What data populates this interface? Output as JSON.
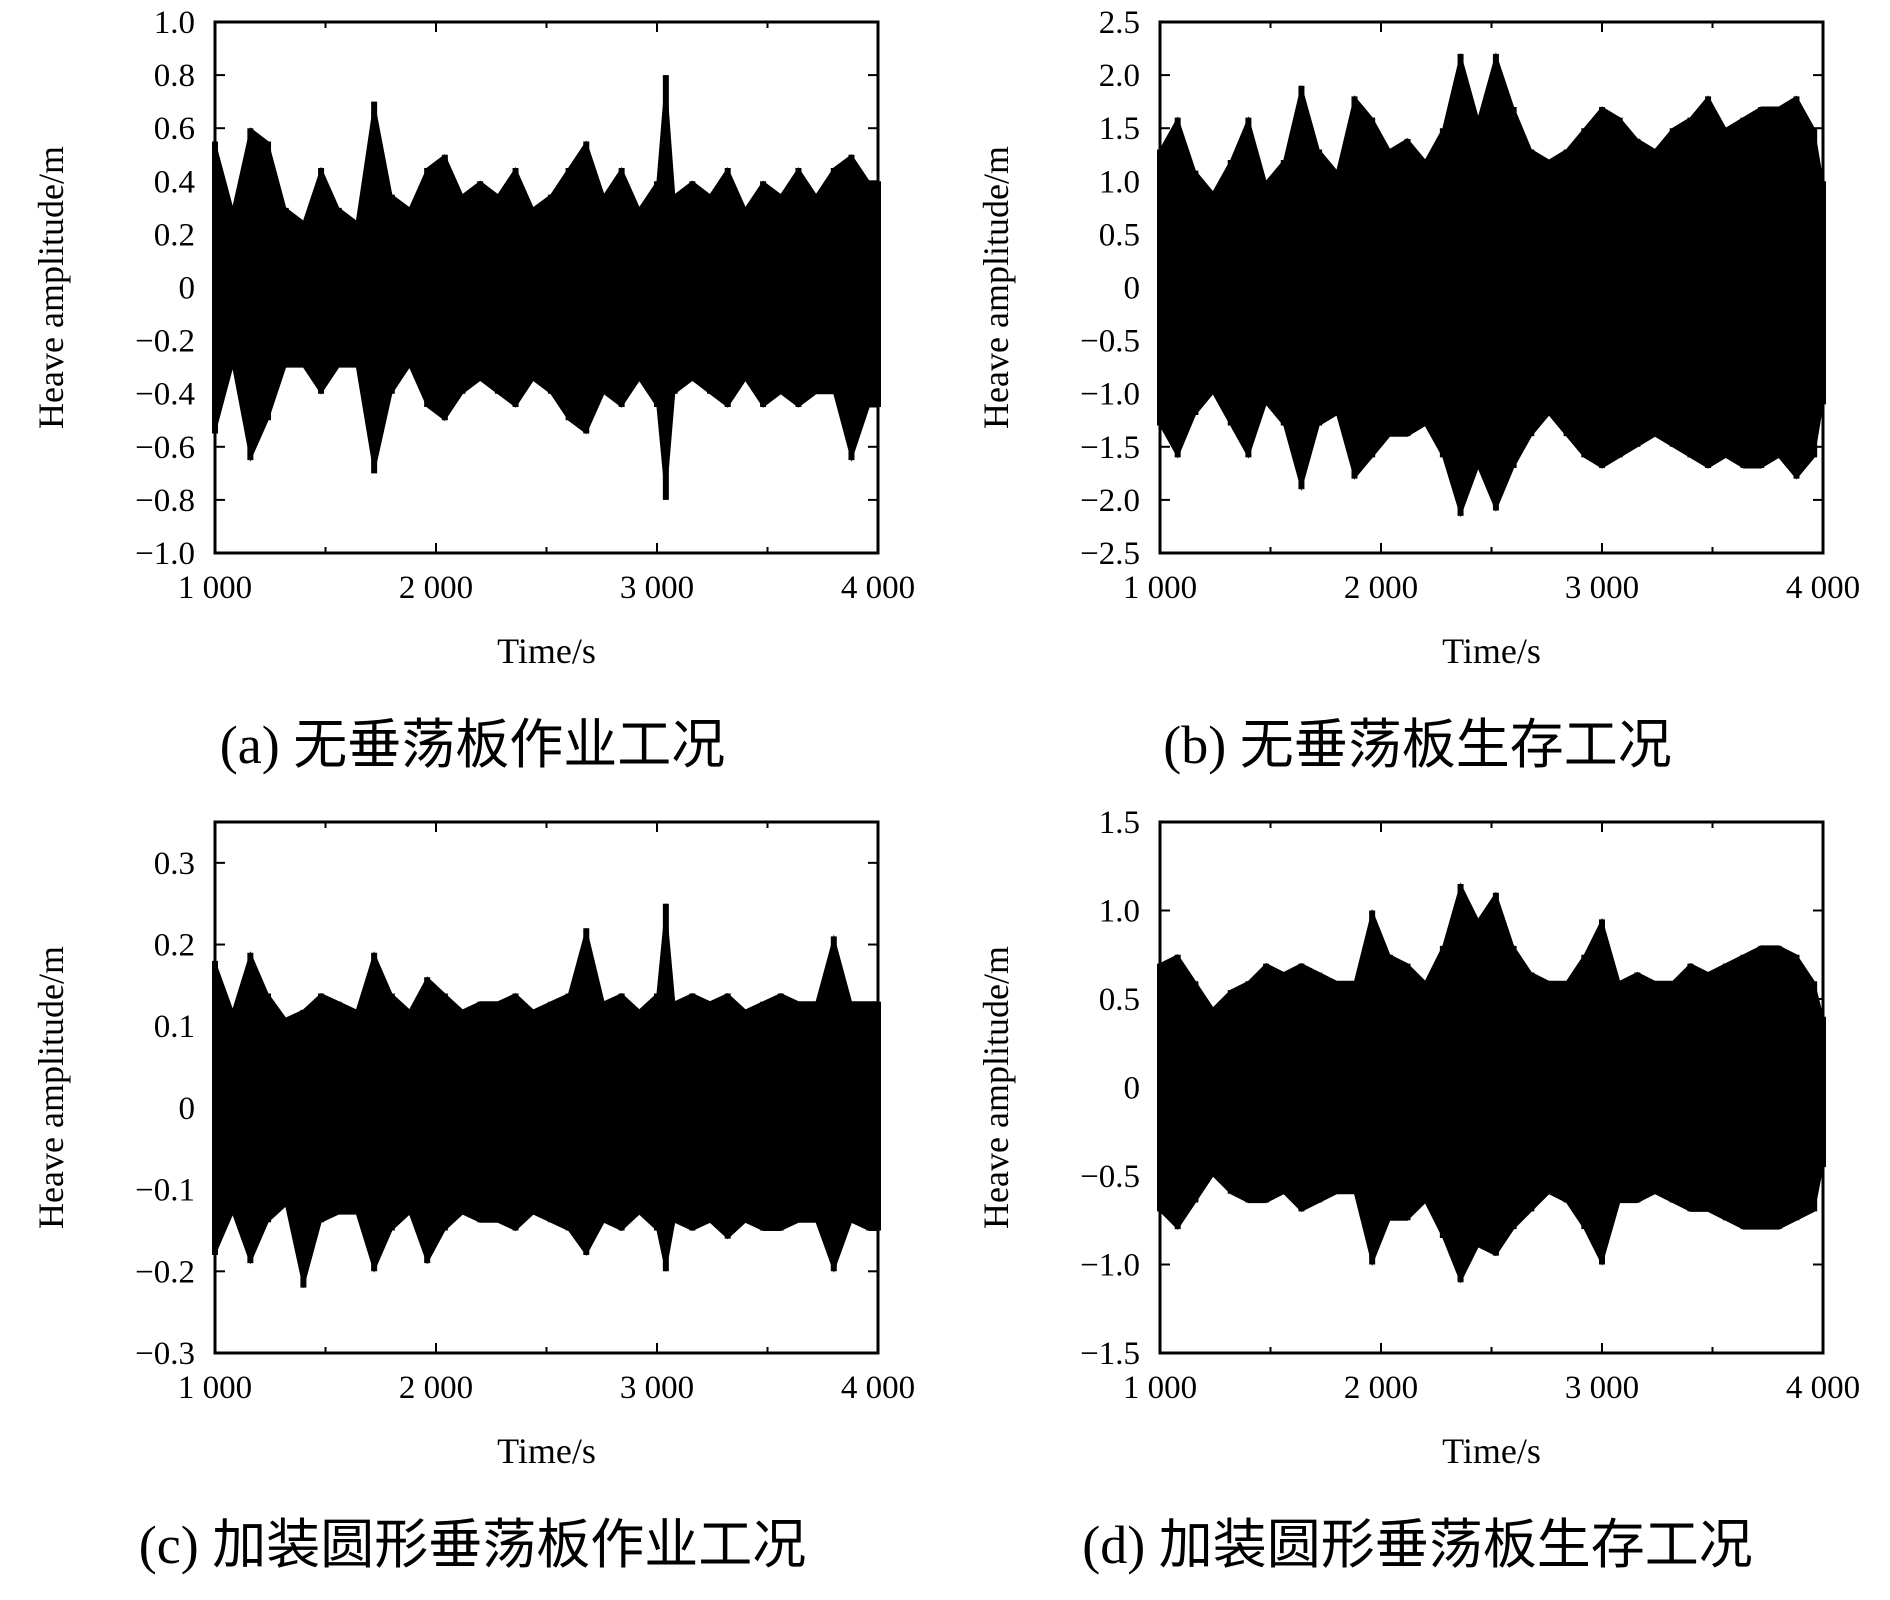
{
  "chart_data": [
    {
      "type": "area",
      "caption": "(a) 无垂荡板作业工况",
      "xlabel": "Time/s",
      "ylabel": "Heave amplitude/m",
      "xlim": [
        1000,
        4000
      ],
      "ylim": [
        -1.0,
        1.0
      ],
      "xticks": [
        "1 000",
        "2 000",
        "3 000",
        "4 000"
      ],
      "yticks": [
        "1.0",
        "0.8",
        "0.6",
        "0.4",
        "0.2",
        "0",
        "−0.2",
        "−0.4",
        "−0.6",
        "−0.8",
        "−1.0"
      ],
      "series": [
        {
          "x": [
            1000,
            1080,
            1160,
            1240,
            1320,
            1400,
            1480,
            1560,
            1640,
            1720,
            1800,
            1880,
            1960,
            2040,
            2120,
            2200,
            2280,
            2360,
            2440,
            2520,
            2600,
            2680,
            2760,
            2840,
            2920,
            3000,
            3040,
            3080,
            3160,
            3240,
            3320,
            3400,
            3480,
            3560,
            3640,
            3720,
            3800,
            3880,
            3960,
            4000
          ],
          "upper": [
            0.55,
            0.3,
            0.6,
            0.55,
            0.3,
            0.25,
            0.45,
            0.3,
            0.25,
            0.7,
            0.35,
            0.3,
            0.45,
            0.5,
            0.35,
            0.4,
            0.35,
            0.45,
            0.3,
            0.35,
            0.45,
            0.55,
            0.35,
            0.45,
            0.3,
            0.4,
            0.8,
            0.35,
            0.4,
            0.35,
            0.45,
            0.3,
            0.4,
            0.35,
            0.45,
            0.35,
            0.45,
            0.5,
            0.4,
            0.4
          ],
          "lower": [
            -0.55,
            -0.3,
            -0.65,
            -0.5,
            -0.3,
            -0.3,
            -0.4,
            -0.3,
            -0.3,
            -0.7,
            -0.4,
            -0.3,
            -0.45,
            -0.5,
            -0.4,
            -0.35,
            -0.4,
            -0.45,
            -0.35,
            -0.4,
            -0.5,
            -0.55,
            -0.4,
            -0.45,
            -0.35,
            -0.45,
            -0.8,
            -0.4,
            -0.35,
            -0.4,
            -0.45,
            -0.35,
            -0.45,
            -0.4,
            -0.45,
            -0.4,
            -0.4,
            -0.65,
            -0.45,
            -0.45
          ]
        }
      ]
    },
    {
      "type": "area",
      "caption": "(b) 无垂荡板生存工况",
      "xlabel": "Time/s",
      "ylabel": "Heave amplitude/m",
      "xlim": [
        1000,
        4000
      ],
      "ylim": [
        -2.5,
        2.5
      ],
      "xticks": [
        "1 000",
        "2 000",
        "3 000",
        "4 000"
      ],
      "yticks": [
        "2.5",
        "2.0",
        "1.5",
        "1.0",
        "0.5",
        "0",
        "−0.5",
        "−1.0",
        "−1.5",
        "−2.0",
        "−2.5"
      ],
      "series": [
        {
          "x": [
            1000,
            1080,
            1160,
            1240,
            1320,
            1400,
            1480,
            1560,
            1640,
            1720,
            1800,
            1880,
            1960,
            2040,
            2120,
            2200,
            2280,
            2360,
            2440,
            2520,
            2600,
            2680,
            2760,
            2840,
            2920,
            3000,
            3080,
            3160,
            3240,
            3320,
            3400,
            3480,
            3560,
            3640,
            3720,
            3800,
            3880,
            3960,
            4000
          ],
          "upper": [
            1.3,
            1.6,
            1.1,
            0.9,
            1.2,
            1.6,
            1.0,
            1.2,
            1.9,
            1.3,
            1.1,
            1.8,
            1.6,
            1.3,
            1.4,
            1.2,
            1.5,
            2.2,
            1.6,
            2.2,
            1.7,
            1.3,
            1.2,
            1.3,
            1.5,
            1.7,
            1.6,
            1.4,
            1.3,
            1.5,
            1.6,
            1.8,
            1.5,
            1.6,
            1.7,
            1.7,
            1.8,
            1.5,
            1.0
          ],
          "lower": [
            -1.3,
            -1.6,
            -1.2,
            -1.0,
            -1.3,
            -1.6,
            -1.1,
            -1.3,
            -1.9,
            -1.3,
            -1.2,
            -1.8,
            -1.6,
            -1.4,
            -1.4,
            -1.3,
            -1.6,
            -2.15,
            -1.7,
            -2.1,
            -1.7,
            -1.4,
            -1.2,
            -1.4,
            -1.6,
            -1.7,
            -1.6,
            -1.5,
            -1.4,
            -1.5,
            -1.6,
            -1.7,
            -1.6,
            -1.7,
            -1.7,
            -1.6,
            -1.8,
            -1.6,
            -1.1
          ]
        }
      ]
    },
    {
      "type": "area",
      "caption": "(c) 加装圆形垂荡板作业工况",
      "xlabel": "Time/s",
      "ylabel": "Heave amplitude/m",
      "xlim": [
        1000,
        4000
      ],
      "ylim": [
        -0.3,
        0.35
      ],
      "xticks": [
        "1 000",
        "2 000",
        "3 000",
        "4 000"
      ],
      "yticks": [
        "0.3",
        "0.2",
        "0.1",
        "0",
        "−0.1",
        "−0.2",
        "−0.3"
      ],
      "series": [
        {
          "x": [
            1000,
            1080,
            1160,
            1240,
            1320,
            1400,
            1480,
            1560,
            1640,
            1720,
            1800,
            1880,
            1960,
            2040,
            2120,
            2200,
            2280,
            2360,
            2440,
            2520,
            2600,
            2680,
            2760,
            2840,
            2920,
            3000,
            3040,
            3080,
            3160,
            3240,
            3320,
            3400,
            3480,
            3560,
            3640,
            3720,
            3800,
            3880,
            3960,
            4000
          ],
          "upper": [
            0.18,
            0.12,
            0.19,
            0.14,
            0.11,
            0.12,
            0.14,
            0.13,
            0.12,
            0.19,
            0.14,
            0.12,
            0.16,
            0.14,
            0.12,
            0.13,
            0.13,
            0.14,
            0.12,
            0.13,
            0.14,
            0.22,
            0.13,
            0.14,
            0.12,
            0.14,
            0.25,
            0.13,
            0.14,
            0.13,
            0.14,
            0.12,
            0.13,
            0.14,
            0.13,
            0.13,
            0.21,
            0.13,
            0.13,
            0.13
          ],
          "lower": [
            -0.18,
            -0.13,
            -0.19,
            -0.14,
            -0.12,
            -0.22,
            -0.14,
            -0.13,
            -0.13,
            -0.2,
            -0.15,
            -0.13,
            -0.19,
            -0.15,
            -0.13,
            -0.14,
            -0.14,
            -0.15,
            -0.13,
            -0.14,
            -0.15,
            -0.18,
            -0.14,
            -0.15,
            -0.13,
            -0.15,
            -0.2,
            -0.14,
            -0.15,
            -0.14,
            -0.16,
            -0.14,
            -0.15,
            -0.15,
            -0.14,
            -0.14,
            -0.2,
            -0.14,
            -0.15,
            -0.15
          ]
        }
      ]
    },
    {
      "type": "area",
      "caption": "(d) 加装圆形垂荡板生存工况",
      "xlabel": "Time/s",
      "ylabel": "Heave amplitude/m",
      "xlim": [
        1000,
        4000
      ],
      "ylim": [
        -1.5,
        1.5
      ],
      "xticks": [
        "1 000",
        "2 000",
        "3 000",
        "4 000"
      ],
      "yticks": [
        "1.5",
        "1.0",
        "0.5",
        "0",
        "−0.5",
        "−1.0",
        "−1.5"
      ],
      "series": [
        {
          "x": [
            1000,
            1080,
            1160,
            1240,
            1320,
            1400,
            1480,
            1560,
            1640,
            1720,
            1800,
            1880,
            1960,
            2040,
            2120,
            2200,
            2280,
            2360,
            2440,
            2520,
            2600,
            2680,
            2760,
            2840,
            2920,
            3000,
            3080,
            3160,
            3240,
            3320,
            3400,
            3480,
            3560,
            3640,
            3720,
            3800,
            3880,
            3960,
            4000
          ],
          "upper": [
            0.7,
            0.75,
            0.6,
            0.45,
            0.55,
            0.6,
            0.7,
            0.65,
            0.7,
            0.65,
            0.6,
            0.6,
            1.0,
            0.75,
            0.7,
            0.6,
            0.8,
            1.15,
            0.95,
            1.1,
            0.8,
            0.65,
            0.6,
            0.6,
            0.75,
            0.95,
            0.6,
            0.65,
            0.6,
            0.6,
            0.7,
            0.65,
            0.7,
            0.75,
            0.8,
            0.8,
            0.75,
            0.6,
            0.4
          ],
          "lower": [
            -0.7,
            -0.8,
            -0.65,
            -0.5,
            -0.6,
            -0.65,
            -0.65,
            -0.6,
            -0.7,
            -0.65,
            -0.6,
            -0.6,
            -1.0,
            -0.75,
            -0.75,
            -0.65,
            -0.85,
            -1.1,
            -0.9,
            -0.95,
            -0.8,
            -0.7,
            -0.6,
            -0.65,
            -0.8,
            -1.0,
            -0.65,
            -0.65,
            -0.6,
            -0.65,
            -0.7,
            -0.7,
            -0.75,
            -0.8,
            -0.8,
            -0.8,
            -0.75,
            -0.7,
            -0.45
          ]
        }
      ]
    }
  ]
}
